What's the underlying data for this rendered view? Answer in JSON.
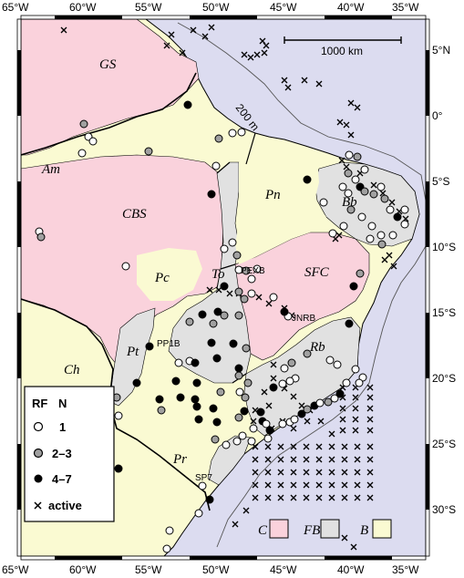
{
  "colors": {
    "ocean": "#dcdcf0",
    "craton": "#fad2dc",
    "fold_belt": "#e1e1e1",
    "basin": "#fafad2",
    "dot_gray": "#a0a0a0"
  },
  "axis": {
    "lon_labels": [
      "65°W",
      "60°W",
      "55°W",
      "50°W",
      "45°W",
      "40°W",
      "35°W"
    ],
    "lat_labels": [
      "5°N",
      "0°",
      "5°S",
      "10°S",
      "15°S",
      "20°S",
      "25°S",
      "30°S"
    ]
  },
  "scale_bar": {
    "label": "1000 km"
  },
  "isobath": {
    "label": "200 m"
  },
  "provinces": [
    {
      "id": "gs",
      "label": "GS"
    },
    {
      "id": "am",
      "label": "Am"
    },
    {
      "id": "cbs",
      "label": "CBS"
    },
    {
      "id": "pn",
      "label": "Pn"
    },
    {
      "id": "bb",
      "label": "Bb"
    },
    {
      "id": "pc",
      "label": "Pc"
    },
    {
      "id": "to",
      "label": "To"
    },
    {
      "id": "sfc",
      "label": "SFC"
    },
    {
      "id": "pt",
      "label": "Pt"
    },
    {
      "id": "rb",
      "label": "Rb"
    },
    {
      "id": "ch",
      "label": "Ch"
    },
    {
      "id": "pr",
      "label": "Pr"
    }
  ],
  "stations": [
    {
      "id": "pexb",
      "label": "PEXB"
    },
    {
      "id": "jnrb",
      "label": "JNRB"
    },
    {
      "id": "pp1b",
      "label": "PP1B"
    },
    {
      "id": "sp7",
      "label": "SP7"
    }
  ],
  "legend": {
    "header_rf": "RF",
    "header_n": "N",
    "items": [
      {
        "symbol": "white",
        "label": "1"
      },
      {
        "symbol": "gray",
        "label": "2–3"
      },
      {
        "symbol": "black",
        "label": "4–7"
      },
      {
        "symbol": "cross",
        "label": "active"
      }
    ]
  },
  "unit_key": [
    {
      "label": "C",
      "color": "#fad2dc"
    },
    {
      "label": "FB",
      "color": "#e1e1e1"
    },
    {
      "label": "B",
      "color": "#fafad2"
    }
  ]
}
